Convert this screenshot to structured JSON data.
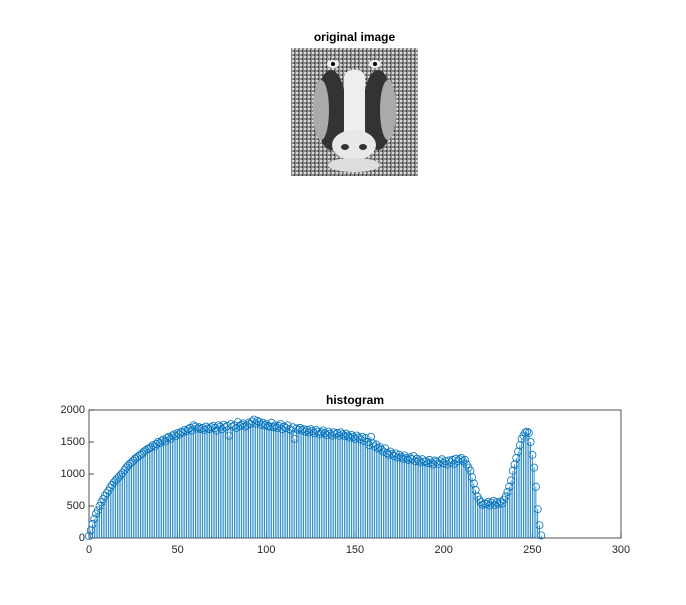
{
  "image": {
    "title": "original image"
  },
  "chart_data": {
    "type": "stem",
    "title": "histogram",
    "color": "#0072bd",
    "xlim": [
      0,
      300
    ],
    "xticks": [
      0,
      50,
      100,
      150,
      200,
      250,
      300
    ],
    "ylim": [
      0,
      2000
    ],
    "yticks": [
      0,
      500,
      1000,
      1500,
      2000
    ],
    "values": [
      30,
      120,
      220,
      300,
      380,
      430,
      500,
      560,
      610,
      660,
      700,
      740,
      790,
      830,
      870,
      900,
      930,
      960,
      990,
      1020,
      1060,
      1100,
      1130,
      1160,
      1180,
      1210,
      1240,
      1260,
      1280,
      1300,
      1320,
      1350,
      1370,
      1390,
      1400,
      1420,
      1450,
      1430,
      1470,
      1500,
      1480,
      1520,
      1540,
      1510,
      1560,
      1580,
      1550,
      1600,
      1620,
      1590,
      1640,
      1620,
      1660,
      1650,
      1690,
      1670,
      1700,
      1720,
      1680,
      1760,
      1740,
      1710,
      1730,
      1700,
      1720,
      1690,
      1740,
      1710,
      1700,
      1730,
      1750,
      1720,
      1680,
      1760,
      1740,
      1700,
      1770,
      1730,
      1750,
      1600,
      1780,
      1740,
      1760,
      1720,
      1810,
      1750,
      1770,
      1790,
      1740,
      1760,
      1800,
      1780,
      1820,
      1850,
      1790,
      1830,
      1810,
      1770,
      1800,
      1760,
      1780,
      1750,
      1740,
      1800,
      1730,
      1760,
      1720,
      1750,
      1780,
      1700,
      1740,
      1720,
      1760,
      1700,
      1680,
      1730,
      1550,
      1710,
      1690,
      1720,
      1680,
      1700,
      1660,
      1690,
      1650,
      1700,
      1670,
      1640,
      1690,
      1660,
      1620,
      1650,
      1680,
      1640,
      1610,
      1660,
      1630,
      1600,
      1650,
      1620,
      1640,
      1600,
      1650,
      1620,
      1590,
      1630,
      1600,
      1570,
      1610,
      1580,
      1550,
      1600,
      1570,
      1540,
      1580,
      1520,
      1560,
      1500,
      1450,
      1580,
      1480,
      1430,
      1460,
      1400,
      1420,
      1380,
      1350,
      1400,
      1330,
      1300,
      1350,
      1310,
      1280,
      1320,
      1260,
      1300,
      1270,
      1240,
      1290,
      1250,
      1220,
      1260,
      1230,
      1280,
      1200,
      1240,
      1210,
      1180,
      1230,
      1190,
      1200,
      1170,
      1220,
      1180,
      1150,
      1210,
      1190,
      1160,
      1200,
      1230,
      1170,
      1200,
      1150,
      1210,
      1180,
      1220,
      1160,
      1240,
      1200,
      1230,
      1250,
      1200,
      1220,
      1150,
      1100,
      1050,
      950,
      850,
      750,
      650,
      600,
      560,
      520,
      540,
      530,
      560,
      510,
      550,
      580,
      520,
      560,
      530,
      570,
      540,
      600,
      650,
      720,
      800,
      900,
      1050,
      1150,
      1250,
      1350,
      1450,
      1550,
      1600,
      1650,
      1660,
      1640,
      1500,
      1300,
      1100,
      800,
      450,
      200,
      40
    ]
  }
}
